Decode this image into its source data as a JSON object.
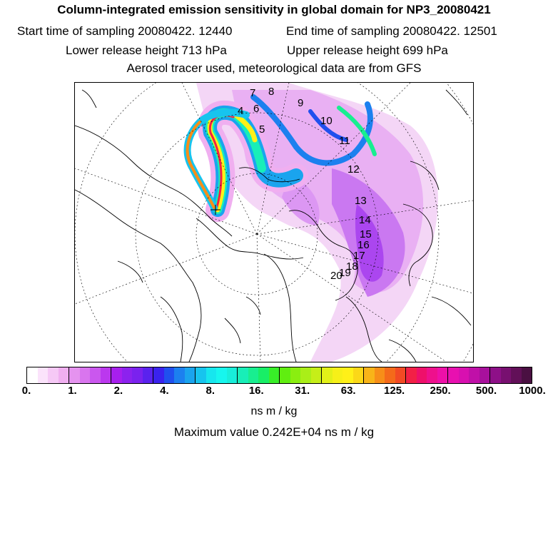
{
  "header": {
    "title": "Column-integrated emission sensitivity in global domain for NP3_20080421",
    "start": "Start time of sampling 20080422. 12440",
    "end": "End time of sampling 20080422. 12501",
    "lower": "Lower release height  713 hPa",
    "upper": "Upper release height  699 hPa",
    "tracer": "Aerosol tracer used, meteorological data are from GFS"
  },
  "map": {
    "trajectory_labels": [
      "7",
      "8",
      "4",
      "6",
      "9",
      "5",
      "10",
      "11",
      "12",
      "13",
      "14",
      "15",
      "16",
      "17",
      "18",
      "19",
      "20"
    ]
  },
  "colorbar": {
    "tick_labels": [
      "0.",
      "1.",
      "2.",
      "4.",
      "8.",
      "16.",
      "31.",
      "63.",
      "125.",
      "250.",
      "500.",
      "1000."
    ],
    "colors": [
      "#ffffff",
      "#fbe3fb",
      "#f6c9f6",
      "#f0aff0",
      "#e593ef",
      "#d975ee",
      "#ca57ee",
      "#bb38ee",
      "#a71fee",
      "#8c22ee",
      "#7a22ee",
      "#5a22ee",
      "#3a22ee",
      "#2050ee",
      "#1c80ef",
      "#1aa4ee",
      "#17c4ee",
      "#17e6ee",
      "#17f6ee",
      "#18eeda",
      "#18eeb8",
      "#18ee90",
      "#18ee66",
      "#38ee28",
      "#60ee10",
      "#8aee10",
      "#aaee18",
      "#c6ee18",
      "#e2f018",
      "#f6f018",
      "#fff018",
      "#fbd818",
      "#f8b418",
      "#f78e18",
      "#f46a1a",
      "#f24a24",
      "#f22046",
      "#ee106a",
      "#ee108c",
      "#ee10a8",
      "#e810b0",
      "#d810b0",
      "#c010a8",
      "#a8109c",
      "#8e1088",
      "#781070",
      "#621058",
      "#4a1042"
    ],
    "units": "ns m / kg",
    "max_value": "Maximum value  0.242E+04 ns m / kg"
  }
}
